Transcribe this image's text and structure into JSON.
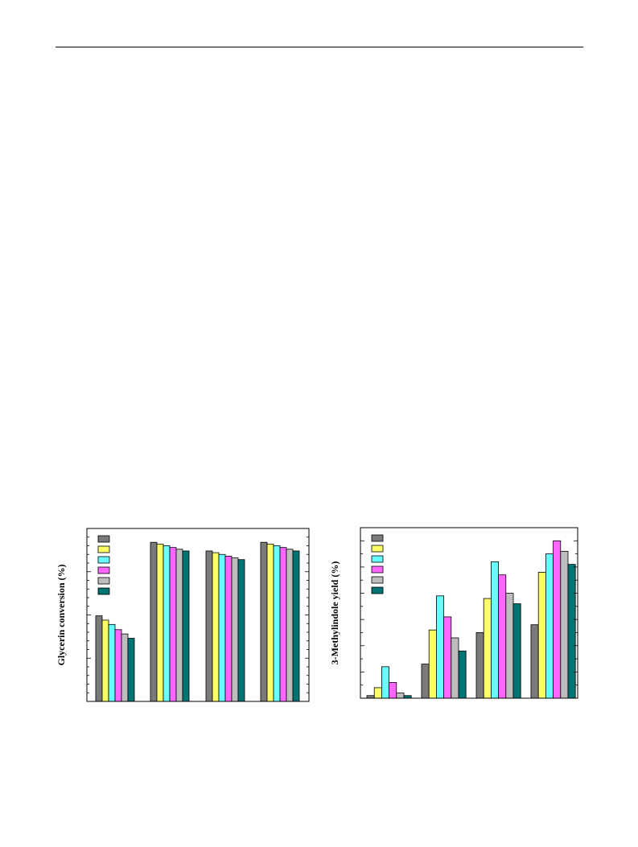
{
  "page": {},
  "colors": [
    "#7a7a7a",
    "#ffff66",
    "#66ffff",
    "#ff66ff",
    "#bdbdbd",
    "#007373"
  ],
  "chart_data": [
    {
      "type": "bar",
      "title": "",
      "ylabel": "Glycerin conversion (%)",
      "xlabel": "",
      "ylim": [
        0,
        100
      ],
      "categories": [
        "",
        "",
        "",
        ""
      ],
      "legend_position": "top-left",
      "grid": false,
      "series": [
        {
          "values": [
            49.5,
            92,
            87,
            92
          ]
        },
        {
          "values": [
            47,
            91,
            86,
            91
          ]
        },
        {
          "values": [
            44.5,
            90,
            85,
            90
          ]
        },
        {
          "values": [
            41.5,
            89,
            84,
            89
          ]
        },
        {
          "values": [
            39,
            88,
            83,
            88
          ]
        },
        {
          "values": [
            36.5,
            87,
            82,
            87
          ]
        }
      ]
    },
    {
      "type": "bar",
      "title": "",
      "ylabel": "3-Methylindole yield (%)",
      "xlabel": "",
      "ylim": [
        0,
        65
      ],
      "categories": [
        "",
        "",
        "",
        ""
      ],
      "legend_position": "top-left",
      "grid": false,
      "series": [
        {
          "values": [
            1,
            13,
            25,
            28
          ]
        },
        {
          "values": [
            4,
            26,
            38,
            48
          ]
        },
        {
          "values": [
            12,
            39,
            52,
            55
          ]
        },
        {
          "values": [
            6,
            31,
            47,
            60
          ]
        },
        {
          "values": [
            2,
            23,
            40,
            56
          ]
        },
        {
          "values": [
            1,
            18,
            36,
            51
          ]
        }
      ]
    }
  ]
}
